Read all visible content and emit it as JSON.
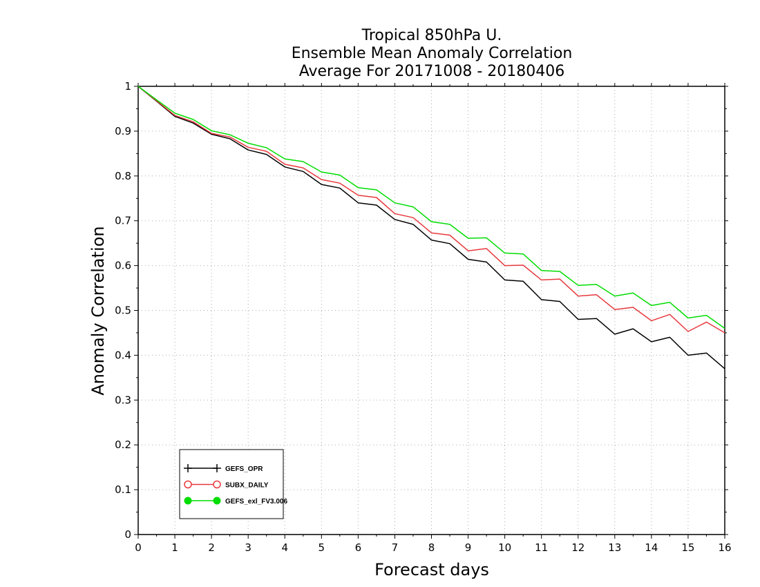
{
  "chart_data": {
    "type": "line",
    "title_lines": [
      "Tropical 850hPa U.",
      "Ensemble Mean Anomaly Correlation",
      "Average For 20171008 - 20180406"
    ],
    "xlabel": "Forecast days",
    "ylabel": "Anomaly Correlation",
    "xlim": [
      0,
      16
    ],
    "ylim": [
      0,
      1
    ],
    "x_ticks": [
      "0",
      "1",
      "2",
      "3",
      "4",
      "5",
      "6",
      "7",
      "8",
      "9",
      "10",
      "11",
      "12",
      "13",
      "14",
      "15",
      "16"
    ],
    "y_ticks": [
      "0",
      "0.1",
      "0.2",
      "0.3",
      "0.4",
      "0.5",
      "0.6",
      "0.7",
      "0.8",
      "0.9",
      "1"
    ],
    "grid": true,
    "legend_position": "bottom-left",
    "x": [
      0,
      0.5,
      1,
      1.5,
      2,
      2.5,
      3,
      3.5,
      4,
      4.5,
      5,
      5.5,
      6,
      6.5,
      7,
      7.5,
      8,
      8.5,
      9,
      9.5,
      10,
      10.5,
      11,
      11.5,
      12,
      12.5,
      13,
      13.5,
      14,
      14.5,
      15,
      15.5,
      16
    ],
    "series": [
      {
        "name": "GEFS_OPR",
        "color": "#000000",
        "marker": "plus",
        "values": [
          1.0,
          0.967,
          0.933,
          0.918,
          0.893,
          0.883,
          0.858,
          0.848,
          0.82,
          0.81,
          0.781,
          0.773,
          0.74,
          0.735,
          0.703,
          0.692,
          0.657,
          0.649,
          0.614,
          0.608,
          0.568,
          0.565,
          0.524,
          0.52,
          0.48,
          0.482,
          0.447,
          0.459,
          0.43,
          0.44,
          0.4,
          0.405,
          0.37
        ]
      },
      {
        "name": "SUBX_DAILY",
        "color": "#e8383c",
        "marker": "open-circle",
        "values": [
          1.0,
          0.968,
          0.935,
          0.921,
          0.895,
          0.887,
          0.864,
          0.855,
          0.826,
          0.818,
          0.792,
          0.784,
          0.757,
          0.752,
          0.716,
          0.707,
          0.673,
          0.668,
          0.633,
          0.638,
          0.6,
          0.601,
          0.568,
          0.57,
          0.532,
          0.535,
          0.502,
          0.507,
          0.477,
          0.491,
          0.453,
          0.474,
          0.45
        ]
      },
      {
        "name": "GEFS_exl_FV3.006",
        "color": "#00dd00",
        "marker": "filled-circle",
        "values": [
          1.0,
          0.97,
          0.94,
          0.926,
          0.901,
          0.892,
          0.873,
          0.863,
          0.838,
          0.832,
          0.809,
          0.802,
          0.774,
          0.769,
          0.74,
          0.731,
          0.698,
          0.692,
          0.661,
          0.662,
          0.628,
          0.626,
          0.589,
          0.587,
          0.556,
          0.558,
          0.532,
          0.539,
          0.511,
          0.518,
          0.483,
          0.489,
          0.46
        ]
      }
    ]
  }
}
